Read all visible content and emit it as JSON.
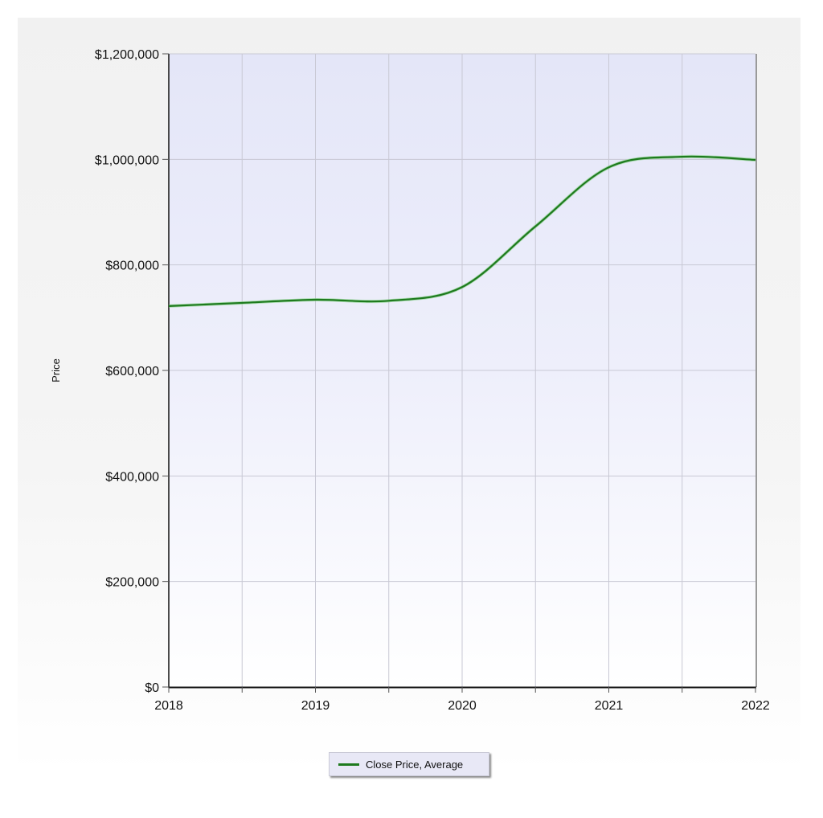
{
  "chart_data": {
    "type": "line",
    "title": "",
    "xlabel": "",
    "ylabel": "Price",
    "x_ticks": [
      "2018",
      "2019",
      "2020",
      "2021",
      "2022"
    ],
    "y_ticks": [
      "$0",
      "$200,000",
      "$400,000",
      "$600,000",
      "$800,000",
      "$1,000,000",
      "$1,200,000"
    ],
    "ylim": [
      0,
      1200000
    ],
    "xlim": [
      2018,
      2022
    ],
    "grid": true,
    "legend_position": "bottom-center",
    "series": [
      {
        "name": "Close Price, Average",
        "color": "#1e7a1e",
        "x": [
          2018,
          2018.5,
          2019,
          2019.5,
          2020,
          2020.5,
          2021,
          2021.5,
          2022
        ],
        "values": [
          722000,
          728000,
          734000,
          732000,
          758000,
          873000,
          985000,
          1005000,
          999000
        ]
      }
    ]
  },
  "legend": {
    "label": "Close Price, Average"
  },
  "axis": {
    "ylabel": "Price"
  }
}
